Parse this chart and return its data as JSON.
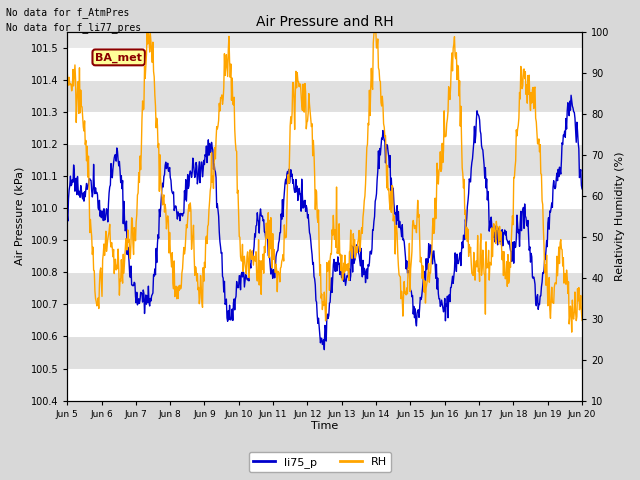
{
  "title": "Air Pressure and RH",
  "xlabel": "Time",
  "ylabel_left": "Air Pressure (kPa)",
  "ylabel_right": "Relativity Humidity (%)",
  "top_text": [
    "No data for f_AtmPres",
    "No data for f_li77_pres"
  ],
  "badge_text": "BA_met",
  "badge_color": "#ffff99",
  "badge_border_color": "#8b0000",
  "badge_text_color": "#8b0000",
  "ylim_left": [
    100.4,
    101.55
  ],
  "ylim_right": [
    10,
    100
  ],
  "yticks_left": [
    100.4,
    100.5,
    100.6,
    100.7,
    100.8,
    100.9,
    101.0,
    101.1,
    101.2,
    101.3,
    101.4,
    101.5
  ],
  "yticks_right": [
    10,
    20,
    30,
    40,
    50,
    60,
    70,
    80,
    90,
    100
  ],
  "xtick_labels": [
    "Jun 5",
    "Jun 6",
    "Jun 7",
    "Jun 8",
    "Jun 9",
    "Jun 10",
    "Jun 11",
    "Jun 12",
    "Jun 13",
    "Jun 14",
    "Jun 15",
    "Jun 16",
    "Jun 17",
    "Jun 18",
    "Jun 19",
    "Jun 20"
  ],
  "line_li75p_color": "#0000cc",
  "line_RH_color": "#ffa500",
  "legend_labels": [
    "li75_p",
    "RH"
  ],
  "background_color": "#d8d8d8",
  "plot_bg_color": "#e8e8e8",
  "grid_color": "#ffffff",
  "n_points": 800
}
